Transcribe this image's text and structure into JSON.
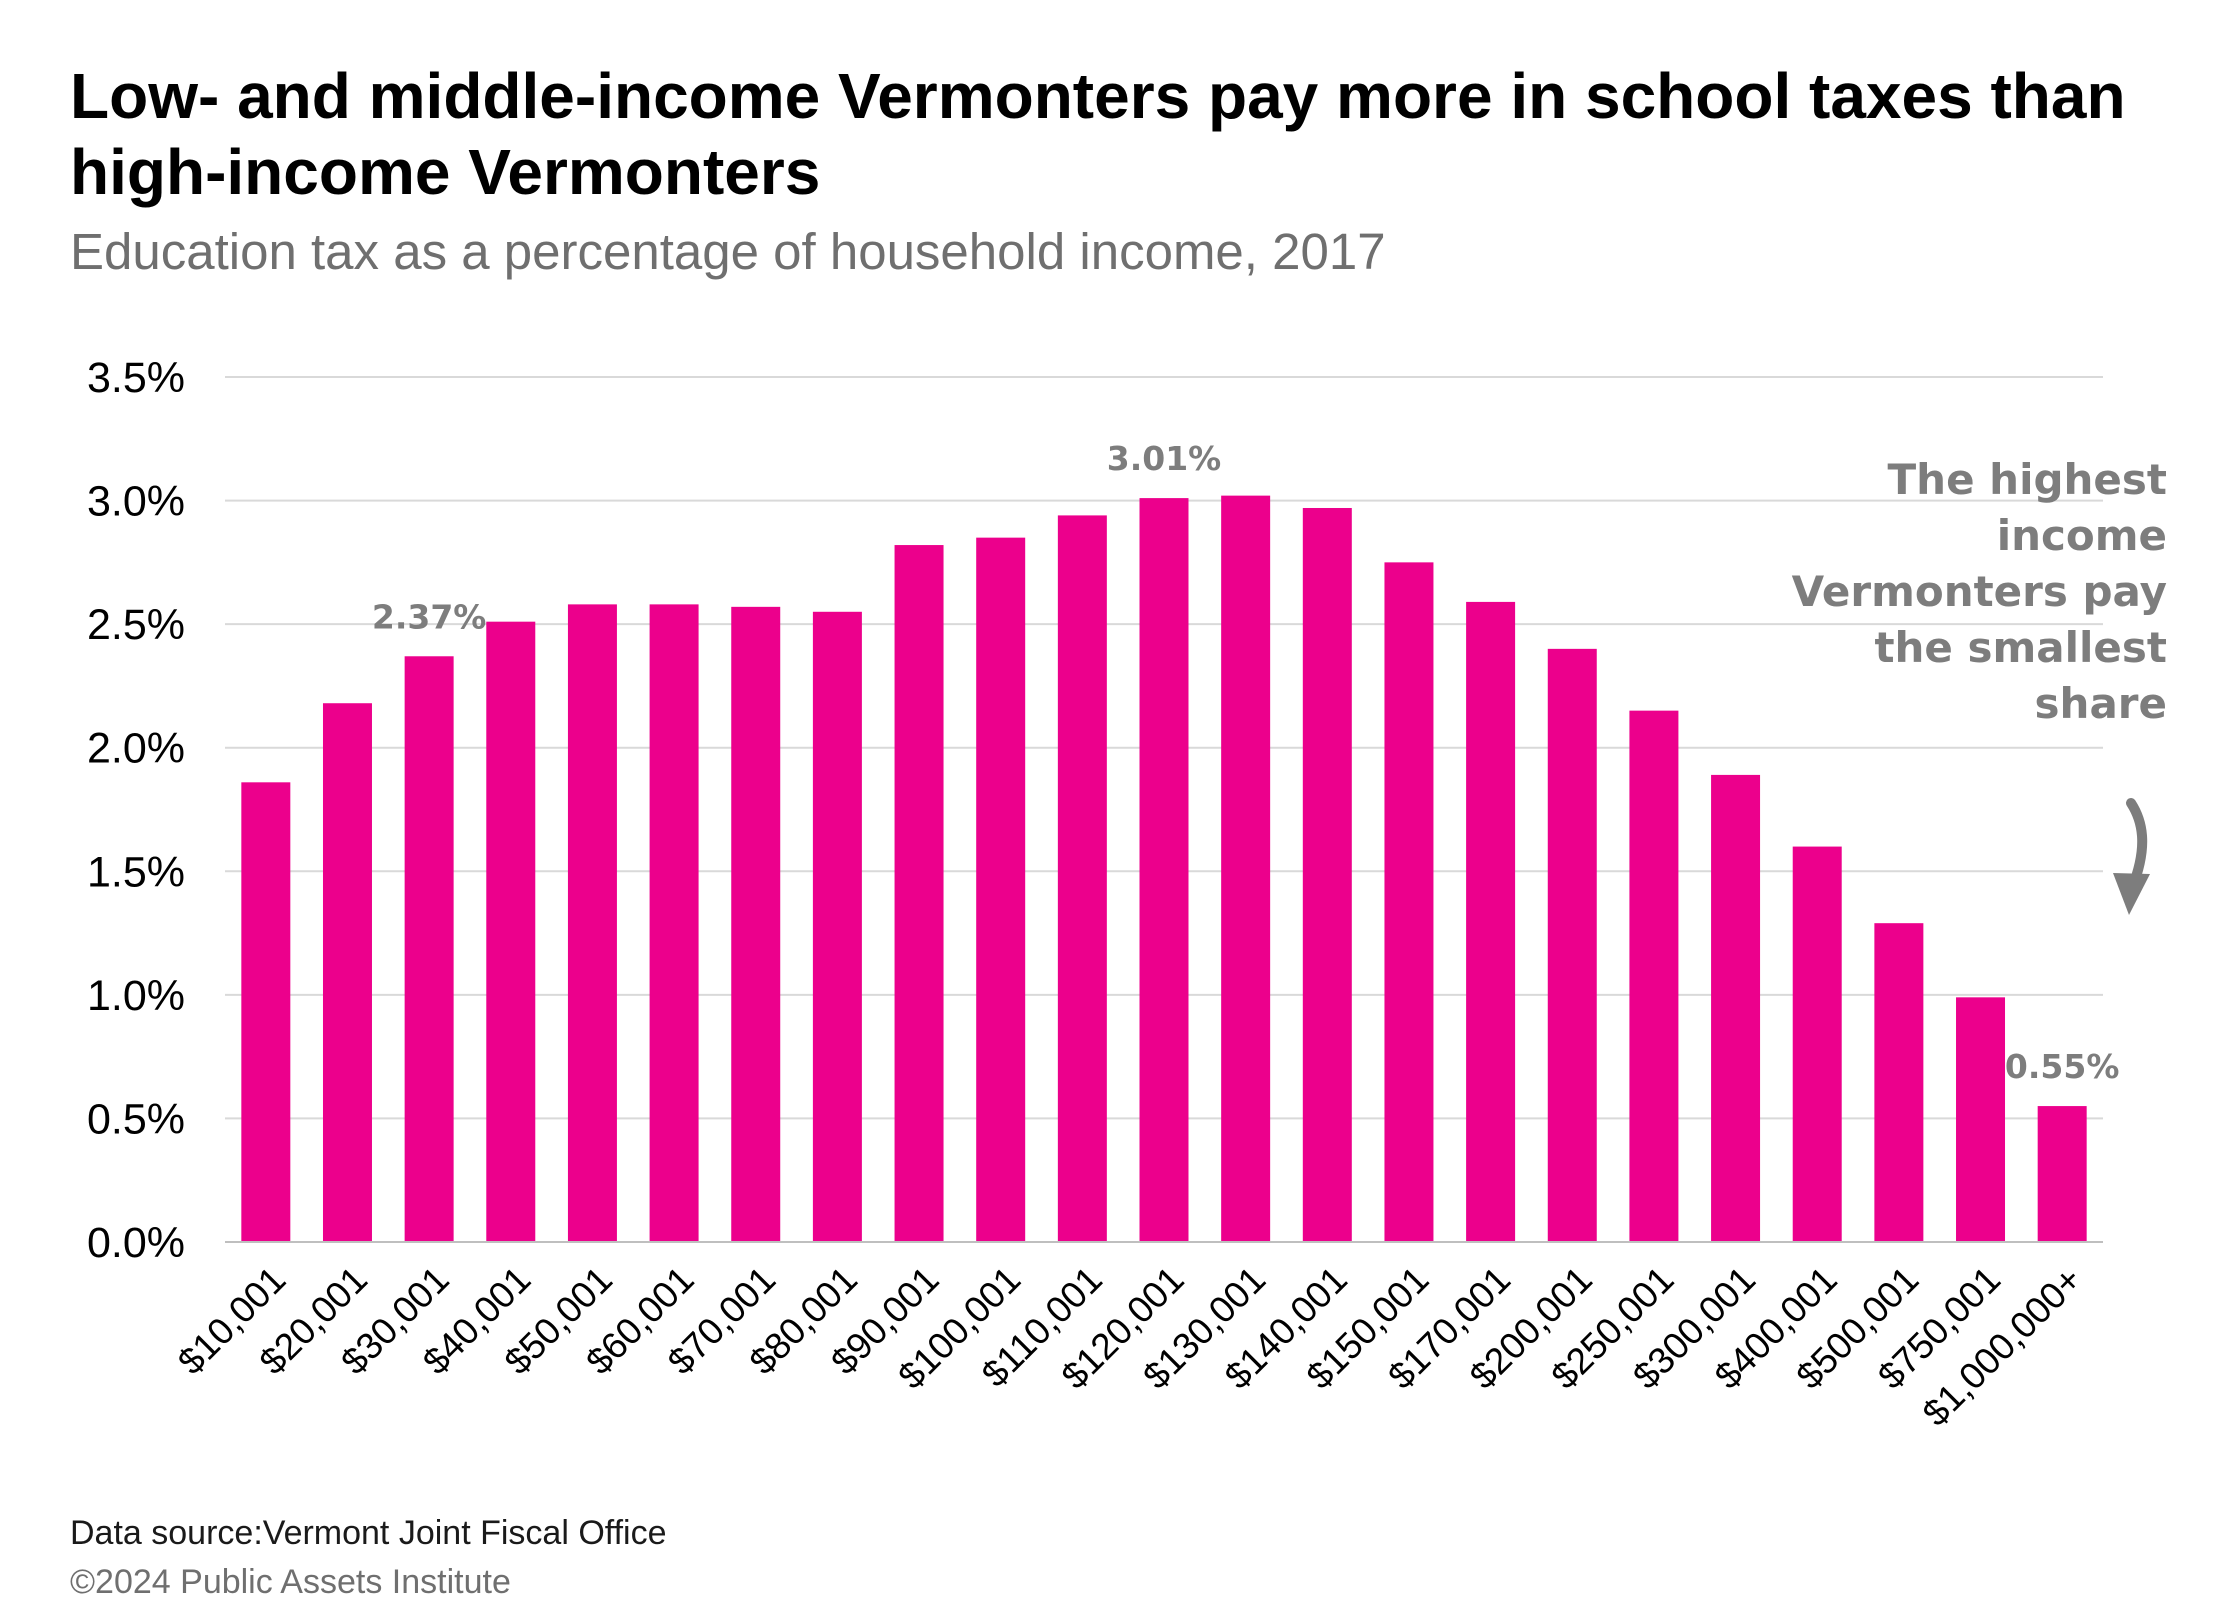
{
  "header": {
    "title": "Low- and middle-income Vermonters pay more in school taxes than high-income Vermonters",
    "subtitle": "Education tax as a percentage of household income, 2017"
  },
  "annotation": {
    "text": "The highest income Vermonters pay the smallest share",
    "icon": "curved-down-arrow-icon"
  },
  "footer": {
    "source": "Data source:Vermont Joint Fiscal Office",
    "copyright": "©2024 Public Assets Institute"
  },
  "chart_data": {
    "type": "bar",
    "title": "Low- and middle-income Vermonters pay more in school taxes than high-income Vermonters",
    "subtitle": "Education tax as a percentage of household income, 2017",
    "xlabel": "",
    "ylabel": "",
    "categories": [
      "$10,001",
      "$20,001",
      "$30,001",
      "$40,001",
      "$50,001",
      "$60,001",
      "$70,001",
      "$80,001",
      "$90,001",
      "$100,001",
      "$110,001",
      "$120,001",
      "$130,001",
      "$140,001",
      "$150,001",
      "$170,001",
      "$200,001",
      "$250,001",
      "$300,001",
      "$400,001",
      "$500,001",
      "$750,001",
      "$1,000,000+"
    ],
    "values": [
      1.86,
      2.18,
      2.37,
      2.51,
      2.58,
      2.58,
      2.57,
      2.55,
      2.82,
      2.85,
      2.94,
      3.01,
      3.02,
      2.97,
      2.75,
      2.59,
      2.4,
      2.15,
      1.89,
      1.6,
      1.29,
      0.99,
      0.55
    ],
    "data_labels": [
      {
        "category": "$30,001",
        "text": "2.37%"
      },
      {
        "category": "$120,001",
        "text": "3.01%"
      },
      {
        "category": "$1,000,000+",
        "text": "0.55%"
      }
    ],
    "ylim": [
      0,
      3.5
    ],
    "yticks": [
      0,
      0.5,
      1.0,
      1.5,
      2.0,
      2.5,
      3.0,
      3.5
    ],
    "ytick_labels": [
      "0.0%",
      "0.5%",
      "1.0%",
      "1.5%",
      "2.0%",
      "2.5%",
      "3.0%",
      "3.5%"
    ],
    "grid": true,
    "colors": {
      "bar": "#ec008c",
      "grid": "#d9d9d9",
      "axis": "#bfbfbf",
      "label": "#7d7d7d",
      "tick": "#000000"
    }
  }
}
